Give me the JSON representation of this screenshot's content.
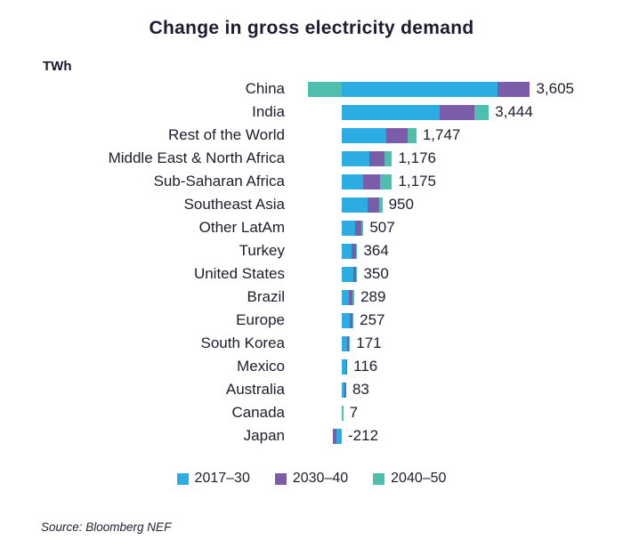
{
  "title": "Change in gross electricity demand",
  "unit_label": "TWh",
  "source": "Source: Bloomberg NEF",
  "colors": {
    "series_2017_30": "#2BACE2",
    "series_2030_40": "#7A5CA8",
    "series_2040_50": "#4DBFAC",
    "text": "#1C1C2E"
  },
  "legend": [
    {
      "label": "2017–30",
      "color": "#2BACE2"
    },
    {
      "label": "2030–40",
      "color": "#7A5CA8"
    },
    {
      "label": "2040–50",
      "color": "#4DBFAC"
    }
  ],
  "chart_data": {
    "type": "bar",
    "orientation": "horizontal",
    "stacked": true,
    "unit": "TWh",
    "title": "Change in gross electricity demand",
    "categories": [
      "China",
      "India",
      "Rest of the World",
      "Middle East & North Africa",
      "Sub-Saharan Africa",
      "Southeast Asia",
      "Other LatAm",
      "Turkey",
      "United States",
      "Brazil",
      "Europe",
      "South Korea",
      "Mexico",
      "Australia",
      "Canada",
      "Japan"
    ],
    "totals": [
      3605,
      3444,
      1747,
      1176,
      1175,
      950,
      507,
      364,
      350,
      289,
      257,
      171,
      116,
      83,
      7,
      -212
    ],
    "total_labels": [
      "3,605",
      "3,444",
      "1,747",
      "1,176",
      "1,175",
      "950",
      "507",
      "364",
      "350",
      "289",
      "257",
      "171",
      "116",
      "83",
      "7",
      "-212"
    ],
    "series": [
      {
        "name": "2017–30",
        "color": "#2BACE2",
        "values": [
          3640,
          2300,
          1050,
          640,
          500,
          600,
          320,
          230,
          270,
          175,
          195,
          125,
          95,
          70,
          0,
          -120
        ]
      },
      {
        "name": "2030–40",
        "color": "#7A5CA8",
        "values": [
          765,
          800,
          500,
          350,
          400,
          270,
          140,
          100,
          60,
          85,
          45,
          35,
          21,
          13,
          0,
          -92
        ]
      },
      {
        "name": "2040–50",
        "color": "#4DBFAC",
        "values": [
          -800,
          344,
          197,
          186,
          275,
          80,
          47,
          34,
          20,
          29,
          17,
          11,
          0,
          0,
          7,
          0
        ]
      }
    ],
    "legend_position": "bottom",
    "grid": false
  }
}
